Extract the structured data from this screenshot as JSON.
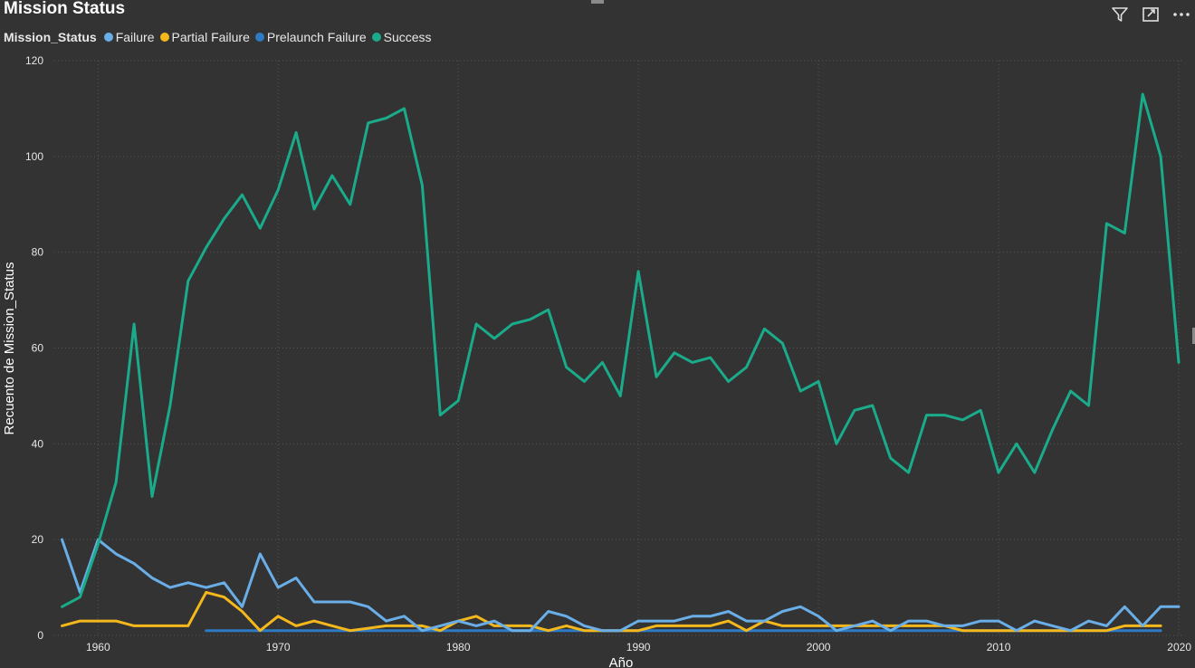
{
  "visual": {
    "title": "Mission Status",
    "toolbar": {
      "filter_icon": "filter-icon",
      "focus_icon": "focus-mode-icon",
      "more_icon": "more-options-icon"
    }
  },
  "legend": {
    "title": "Mission_Status",
    "items": [
      {
        "label": "Failure",
        "color": "#6aaee8"
      },
      {
        "label": "Partial Failure",
        "color": "#f5b81c"
      },
      {
        "label": "Prelaunch Failure",
        "color": "#2e7bc4"
      },
      {
        "label": "Success",
        "color": "#1aab8a"
      }
    ]
  },
  "chart_data": {
    "type": "line",
    "title": "Mission Status",
    "xlabel": "Año",
    "ylabel": "Recuento de Mission_Status",
    "xlim": [
      1957,
      2020
    ],
    "ylim": [
      0,
      120
    ],
    "x_ticks": [
      1960,
      1970,
      1980,
      1990,
      2000,
      2010,
      2020
    ],
    "y_ticks": [
      0,
      20,
      40,
      60,
      80,
      100,
      120
    ],
    "grid": "on",
    "legend_position": "top-left",
    "series": [
      {
        "name": "Success",
        "color": "#1aab8a",
        "points": [
          [
            1958,
            6
          ],
          [
            1959,
            8
          ],
          [
            1960,
            19
          ],
          [
            1961,
            32
          ],
          [
            1962,
            65
          ],
          [
            1963,
            29
          ],
          [
            1964,
            48
          ],
          [
            1965,
            74
          ],
          [
            1966,
            81
          ],
          [
            1967,
            87
          ],
          [
            1968,
            92
          ],
          [
            1969,
            85
          ],
          [
            1970,
            93
          ],
          [
            1971,
            105
          ],
          [
            1972,
            89
          ],
          [
            1973,
            96
          ],
          [
            1974,
            90
          ],
          [
            1975,
            107
          ],
          [
            1976,
            108
          ],
          [
            1977,
            110
          ],
          [
            1978,
            94
          ],
          [
            1979,
            46
          ],
          [
            1980,
            49
          ],
          [
            1981,
            65
          ],
          [
            1982,
            62
          ],
          [
            1983,
            65
          ],
          [
            1984,
            66
          ],
          [
            1985,
            68
          ],
          [
            1986,
            56
          ],
          [
            1987,
            53
          ],
          [
            1988,
            57
          ],
          [
            1989,
            50
          ],
          [
            1990,
            76
          ],
          [
            1991,
            54
          ],
          [
            1992,
            59
          ],
          [
            1993,
            57
          ],
          [
            1994,
            58
          ],
          [
            1995,
            53
          ],
          [
            1996,
            56
          ],
          [
            1997,
            64
          ],
          [
            1998,
            61
          ],
          [
            1999,
            51
          ],
          [
            2000,
            53
          ],
          [
            2001,
            40
          ],
          [
            2002,
            47
          ],
          [
            2003,
            48
          ],
          [
            2004,
            37
          ],
          [
            2005,
            34
          ],
          [
            2006,
            46
          ],
          [
            2007,
            46
          ],
          [
            2008,
            45
          ],
          [
            2009,
            47
          ],
          [
            2010,
            34
          ],
          [
            2011,
            40
          ],
          [
            2012,
            34
          ],
          [
            2013,
            43
          ],
          [
            2014,
            51
          ],
          [
            2015,
            48
          ],
          [
            2016,
            86
          ],
          [
            2017,
            84
          ],
          [
            2018,
            113
          ],
          [
            2019,
            100
          ],
          [
            2020,
            57
          ]
        ]
      },
      {
        "name": "Failure",
        "color": "#6aaee8",
        "points": [
          [
            1958,
            20
          ],
          [
            1959,
            9
          ],
          [
            1960,
            20
          ],
          [
            1961,
            17
          ],
          [
            1962,
            15
          ],
          [
            1963,
            12
          ],
          [
            1964,
            10
          ],
          [
            1965,
            11
          ],
          [
            1966,
            10
          ],
          [
            1967,
            11
          ],
          [
            1968,
            6
          ],
          [
            1969,
            17
          ],
          [
            1970,
            10
          ],
          [
            1971,
            12
          ],
          [
            1972,
            7
          ],
          [
            1973,
            7
          ],
          [
            1974,
            7
          ],
          [
            1975,
            6
          ],
          [
            1976,
            3
          ],
          [
            1977,
            4
          ],
          [
            1978,
            1
          ],
          [
            1979,
            2
          ],
          [
            1980,
            3
          ],
          [
            1981,
            2
          ],
          [
            1982,
            3
          ],
          [
            1983,
            1
          ],
          [
            1984,
            1
          ],
          [
            1985,
            5
          ],
          [
            1986,
            4
          ],
          [
            1987,
            2
          ],
          [
            1988,
            1
          ],
          [
            1989,
            1
          ],
          [
            1990,
            3
          ],
          [
            1991,
            3
          ],
          [
            1992,
            3
          ],
          [
            1993,
            4
          ],
          [
            1994,
            4
          ],
          [
            1995,
            5
          ],
          [
            1996,
            3
          ],
          [
            1997,
            3
          ],
          [
            1998,
            5
          ],
          [
            1999,
            6
          ],
          [
            2000,
            4
          ],
          [
            2001,
            1
          ],
          [
            2002,
            2
          ],
          [
            2003,
            3
          ],
          [
            2004,
            1
          ],
          [
            2005,
            3
          ],
          [
            2006,
            3
          ],
          [
            2007,
            2
          ],
          [
            2008,
            2
          ],
          [
            2009,
            3
          ],
          [
            2010,
            3
          ],
          [
            2011,
            1
          ],
          [
            2012,
            3
          ],
          [
            2013,
            2
          ],
          [
            2014,
            1
          ],
          [
            2015,
            3
          ],
          [
            2016,
            2
          ],
          [
            2017,
            6
          ],
          [
            2018,
            2
          ],
          [
            2019,
            6
          ],
          [
            2020,
            6
          ]
        ]
      },
      {
        "name": "Partial Failure",
        "color": "#f5b81c",
        "points": [
          [
            1958,
            2
          ],
          [
            1959,
            3
          ],
          [
            1960,
            3
          ],
          [
            1961,
            3
          ],
          [
            1962,
            2
          ],
          [
            1963,
            2
          ],
          [
            1964,
            2
          ],
          [
            1965,
            2
          ],
          [
            1966,
            9
          ],
          [
            1967,
            8
          ],
          [
            1968,
            5
          ],
          [
            1969,
            1
          ],
          [
            1970,
            4
          ],
          [
            1971,
            2
          ],
          [
            1972,
            3
          ],
          [
            1973,
            2
          ],
          [
            1974,
            1
          ],
          [
            1975,
            1.5
          ],
          [
            1976,
            2
          ],
          [
            1977,
            2
          ],
          [
            1978,
            2
          ],
          [
            1979,
            1
          ],
          [
            1980,
            3
          ],
          [
            1981,
            4
          ],
          [
            1982,
            2
          ],
          [
            1983,
            2
          ],
          [
            1984,
            2
          ],
          [
            1985,
            1
          ],
          [
            1986,
            2
          ],
          [
            1987,
            1
          ],
          [
            1988,
            1
          ],
          [
            1989,
            1
          ],
          [
            1990,
            1
          ],
          [
            1991,
            2
          ],
          [
            1992,
            2
          ],
          [
            1993,
            2
          ],
          [
            1994,
            2
          ],
          [
            1995,
            3
          ],
          [
            1996,
            1
          ],
          [
            1997,
            3
          ],
          [
            1998,
            2
          ],
          [
            1999,
            2
          ],
          [
            2000,
            2
          ],
          [
            2001,
            2
          ],
          [
            2002,
            2
          ],
          [
            2003,
            2
          ],
          [
            2004,
            2
          ],
          [
            2005,
            2
          ],
          [
            2006,
            2
          ],
          [
            2007,
            2
          ],
          [
            2008,
            1
          ],
          [
            2009,
            1
          ],
          [
            2010,
            1
          ],
          [
            2011,
            1
          ],
          [
            2012,
            1
          ],
          [
            2013,
            1
          ],
          [
            2014,
            1
          ],
          [
            2015,
            1
          ],
          [
            2016,
            1
          ],
          [
            2017,
            2
          ],
          [
            2018,
            2
          ],
          [
            2019,
            2
          ]
        ]
      },
      {
        "name": "Prelaunch Failure",
        "color": "#2e7bc4",
        "points": [
          [
            1966,
            1
          ],
          [
            1970,
            1
          ],
          [
            1975,
            1
          ],
          [
            1980,
            1
          ],
          [
            1985,
            1
          ],
          [
            1990,
            1
          ],
          [
            1995,
            1
          ],
          [
            2000,
            1
          ],
          [
            2005,
            1
          ],
          [
            2010,
            1
          ],
          [
            2015,
            1
          ],
          [
            2019,
            1
          ]
        ]
      }
    ]
  }
}
